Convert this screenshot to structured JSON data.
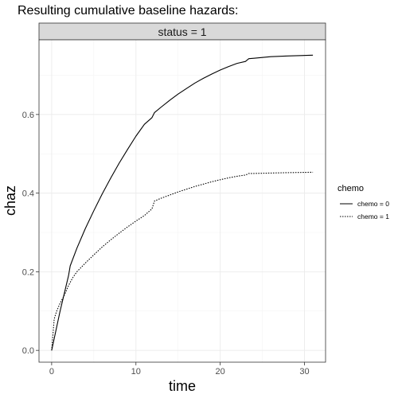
{
  "chart_data": {
    "type": "line",
    "title": "Resulting cumulative baseline hazards:",
    "facet_label": "status = 1",
    "xlabel": "time",
    "ylabel": "chaz",
    "xlim": [
      -1.5,
      32.5
    ],
    "ylim": [
      -0.03,
      0.79
    ],
    "x_ticks": [
      0,
      10,
      20,
      30
    ],
    "y_ticks": [
      0.0,
      0.2,
      0.4,
      0.6
    ],
    "x_tick_labels": [
      "0",
      "10",
      "20",
      "30"
    ],
    "y_tick_labels": [
      "0.0",
      "0.2",
      "0.4",
      "0.6"
    ],
    "grid": true,
    "legend_position": "right",
    "legend": {
      "title": "chemo",
      "labels": [
        "chemo = 0",
        "chemo = 1"
      ]
    },
    "series": [
      {
        "name": "chemo = 0",
        "line_style": "solid",
        "x": [
          0.0,
          1.0,
          2.0,
          2.2,
          3.0,
          4.0,
          5.0,
          6.0,
          7.0,
          8.0,
          9.0,
          10.0,
          11.0,
          11.9,
          12.2,
          13.0,
          14.0,
          15.0,
          16.0,
          17.0,
          18.0,
          19.0,
          20.0,
          21.0,
          22.0,
          23.0,
          23.4,
          24.0,
          25.0,
          26.0,
          28.0,
          31.0
        ],
        "y": [
          0.0,
          0.1,
          0.19,
          0.215,
          0.26,
          0.31,
          0.355,
          0.398,
          0.438,
          0.476,
          0.511,
          0.545,
          0.575,
          0.592,
          0.605,
          0.619,
          0.636,
          0.652,
          0.666,
          0.68,
          0.692,
          0.703,
          0.713,
          0.722,
          0.73,
          0.735,
          0.742,
          0.743,
          0.745,
          0.747,
          0.749,
          0.751
        ]
      },
      {
        "name": "chemo = 1",
        "line_style": "dotted",
        "x": [
          0.0,
          0.3,
          0.6,
          1.0,
          1.5,
          2.0,
          2.5,
          3.0,
          4.0,
          5.0,
          6.0,
          7.0,
          8.0,
          9.0,
          10.0,
          11.0,
          11.9,
          12.2,
          13.0,
          14.0,
          15.0,
          16.0,
          17.0,
          18.0,
          19.0,
          20.0,
          21.0,
          22.0,
          23.0,
          23.4,
          24.0,
          26.0,
          28.0,
          31.0
        ],
        "y": [
          0.0,
          0.08,
          0.1,
          0.12,
          0.14,
          0.165,
          0.185,
          0.2,
          0.222,
          0.243,
          0.263,
          0.281,
          0.298,
          0.314,
          0.329,
          0.343,
          0.36,
          0.38,
          0.387,
          0.395,
          0.403,
          0.41,
          0.417,
          0.423,
          0.429,
          0.434,
          0.439,
          0.443,
          0.446,
          0.45,
          0.45,
          0.451,
          0.452,
          0.453
        ]
      }
    ]
  }
}
